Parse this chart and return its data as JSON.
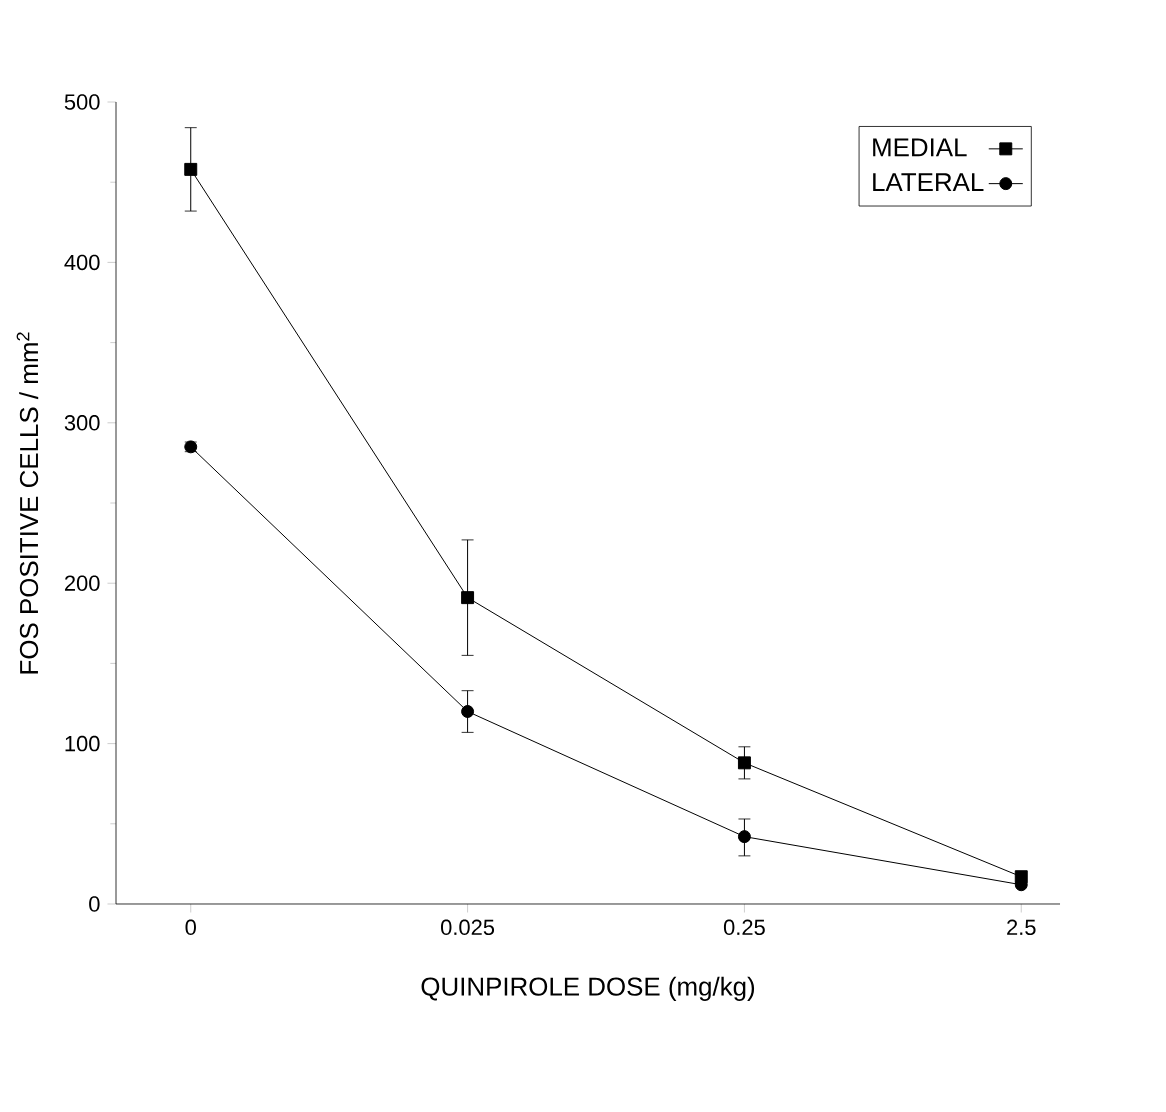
{
  "chart_data": {
    "type": "line",
    "xlabel": "QUINPIROLE DOSE (mg/kg)",
    "ylabel": "FOS POSITIVE CELLS / mm$^{2}$",
    "categories": [
      "0",
      "0.025",
      "0.25",
      "2.5"
    ],
    "series": [
      {
        "name": "MEDIAL",
        "color": "#000000",
        "marker": "square",
        "values": [
          458,
          191,
          88,
          17
        ],
        "errors": [
          [
            432,
            484
          ],
          [
            155,
            227
          ],
          [
            78,
            98
          ],
          null
        ]
      },
      {
        "name": "LATERAL",
        "color": "#000000",
        "marker": "circle",
        "values": [
          285,
          120,
          42,
          12
        ],
        "errors": [
          [
            282,
            288
          ],
          [
            107,
            133
          ],
          [
            30,
            53
          ],
          null
        ]
      }
    ],
    "ylim": [
      0,
      500
    ],
    "yticks": [
      0,
      100,
      200,
      300,
      400,
      500
    ],
    "legend": "top right",
    "line_style": "solid",
    "grid": false
  }
}
